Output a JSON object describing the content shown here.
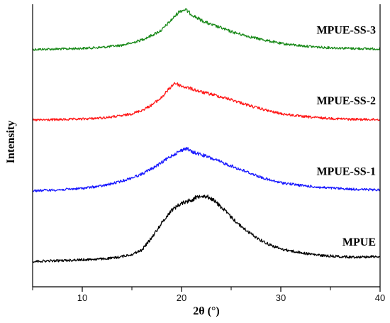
{
  "chart_data": {
    "type": "line",
    "title": "",
    "xlabel": "2θ (°)",
    "ylabel": "Intensity",
    "xlim": [
      5,
      40
    ],
    "xticks": [
      10,
      20,
      30,
      40
    ],
    "yticks_shown": false,
    "grid": false,
    "legend": "none (labels drawn beside each curve, right side)",
    "y_units": "arbitrary (curves vertically offset)",
    "series": [
      {
        "name": "MPUE-SS-3",
        "color": "#1a8a1a",
        "baseline": 0.84,
        "points": [
          [
            5,
            0.0
          ],
          [
            8,
            0.2
          ],
          [
            10,
            0.4
          ],
          [
            12,
            0.8
          ],
          [
            14,
            1.6
          ],
          [
            15,
            2.4
          ],
          [
            16,
            3.6
          ],
          [
            17,
            5.2
          ],
          [
            18,
            7.2
          ],
          [
            19,
            11.0
          ],
          [
            19.8,
            14.2
          ],
          [
            20.4,
            14.8
          ],
          [
            21,
            13.0
          ],
          [
            22,
            10.8
          ],
          [
            23,
            9.2
          ],
          [
            24,
            8.0
          ],
          [
            25,
            6.6
          ],
          [
            26,
            5.6
          ],
          [
            27,
            4.6
          ],
          [
            28,
            3.8
          ],
          [
            29,
            3.0
          ],
          [
            30,
            2.2
          ],
          [
            32,
            1.4
          ],
          [
            34,
            0.8
          ],
          [
            37,
            0.4
          ],
          [
            40,
            0.2
          ]
        ]
      },
      {
        "name": "MPUE-SS-2",
        "color": "#ff1a1a",
        "baseline": 0.59,
        "points": [
          [
            5,
            0.0
          ],
          [
            8,
            0.2
          ],
          [
            10,
            0.4
          ],
          [
            12,
            0.8
          ],
          [
            14,
            1.6
          ],
          [
            15,
            2.4
          ],
          [
            16,
            3.6
          ],
          [
            17,
            5.6
          ],
          [
            18,
            8.4
          ],
          [
            18.8,
            11.8
          ],
          [
            19.3,
            13.8
          ],
          [
            20,
            12.6
          ],
          [
            21,
            11.6
          ],
          [
            22,
            10.4
          ],
          [
            23,
            9.6
          ],
          [
            24,
            8.6
          ],
          [
            25,
            7.6
          ],
          [
            26,
            6.4
          ],
          [
            27,
            5.2
          ],
          [
            28,
            4.2
          ],
          [
            29,
            3.2
          ],
          [
            30,
            2.4
          ],
          [
            32,
            1.4
          ],
          [
            34,
            0.8
          ],
          [
            37,
            0.3
          ],
          [
            40,
            0.2
          ]
        ]
      },
      {
        "name": "MPUE-SS-1",
        "color": "#1a1aff",
        "baseline": 0.34,
        "points": [
          [
            5,
            0.0
          ],
          [
            8,
            0.4
          ],
          [
            10,
            0.9
          ],
          [
            12,
            1.8
          ],
          [
            13,
            2.6
          ],
          [
            14,
            3.6
          ],
          [
            15,
            4.8
          ],
          [
            16,
            6.2
          ],
          [
            17,
            8.2
          ],
          [
            18,
            10.4
          ],
          [
            19,
            13.0
          ],
          [
            20,
            15.0
          ],
          [
            20.5,
            15.8
          ],
          [
            21,
            14.4
          ],
          [
            22,
            13.4
          ],
          [
            23,
            12.0
          ],
          [
            24,
            10.6
          ],
          [
            25,
            9.2
          ],
          [
            26,
            7.8
          ],
          [
            27,
            6.4
          ],
          [
            28,
            5.0
          ],
          [
            29,
            3.8
          ],
          [
            30,
            3.0
          ],
          [
            32,
            2.0
          ],
          [
            34,
            1.2
          ],
          [
            37,
            0.6
          ],
          [
            40,
            0.3
          ]
        ]
      },
      {
        "name": "MPUE",
        "color": "#000000",
        "baseline": 0.09,
        "points": [
          [
            5,
            0.0
          ],
          [
            8,
            0.3
          ],
          [
            10,
            0.6
          ],
          [
            12,
            0.9
          ],
          [
            13,
            1.2
          ],
          [
            14,
            1.8
          ],
          [
            15,
            2.6
          ],
          [
            16,
            4.2
          ],
          [
            17,
            8.8
          ],
          [
            18,
            14.2
          ],
          [
            19,
            19.0
          ],
          [
            20,
            21.6
          ],
          [
            21,
            22.8
          ],
          [
            22,
            24.6
          ],
          [
            23,
            23.4
          ],
          [
            24,
            20.2
          ],
          [
            25,
            16.4
          ],
          [
            26,
            13.0
          ],
          [
            27,
            10.2
          ],
          [
            28,
            7.8
          ],
          [
            29,
            6.0
          ],
          [
            30,
            4.6
          ],
          [
            32,
            3.2
          ],
          [
            34,
            2.2
          ],
          [
            37,
            1.6
          ],
          [
            40,
            1.8
          ]
        ]
      }
    ]
  }
}
